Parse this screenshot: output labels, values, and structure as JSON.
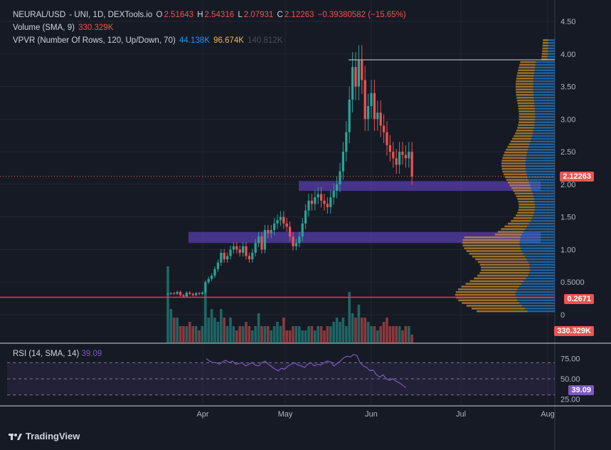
{
  "header": {
    "symbol": "NEURAL/USD",
    "sep1": " - UNI, 1D, DEXTools.io",
    "o_label": "O",
    "o": "2.51643",
    "h_label": "H",
    "h": "2.54316",
    "l_label": "L",
    "l": "2.07931",
    "c_label": "C",
    "c": "2.12263",
    "change": "−0.39380582 (−15.65%)",
    "volume_label": "Volume (SMA, 9)",
    "volume_value": "330.329K",
    "vpvr_label": "VPVR (Number Of Rows, 120, Up/Down, 70)",
    "vpvr_up": "44.138K",
    "vpvr_down": "96.674K",
    "vpvr_total": "140.812K"
  },
  "rsi": {
    "label": "RSI (14, SMA, 14)",
    "value": "39.09",
    "axis": [
      "75.00",
      "50.00",
      "25.00"
    ]
  },
  "price_axis": [
    "4.50",
    "4.00",
    "3.50",
    "3.00",
    "2.50",
    "2.00",
    "1.50",
    "1.00",
    "0.5000",
    "0"
  ],
  "time_axis": [
    "Apr",
    "May",
    "Jun",
    "Jul",
    "Aug"
  ],
  "tags": {
    "last_price": "2.12263",
    "level_line": "0.2671",
    "volume": "330.329K"
  },
  "brand": "TradingView",
  "colors": {
    "up": "#26a69a",
    "down": "#ef5350",
    "bg": "#161a25",
    "grid": "#232633",
    "zone": "#5b3fb5",
    "rsi": "#7e57c2",
    "vp_up": "#2879c0",
    "vp_down": "#e0a030"
  },
  "chart_data": {
    "type": "candlestick",
    "title": "NEURAL/USD - UNI, 1D, DEXTools.io",
    "ylim": [
      0,
      4.6
    ],
    "x_range": [
      "Mar 25",
      "Aug 2"
    ],
    "price_start": 0.32,
    "candles_close_path": [
      0.32,
      0.33,
      0.32,
      0.35,
      0.3,
      0.28,
      0.34,
      0.32,
      0.3,
      0.33,
      0.32,
      0.34,
      0.5,
      0.55,
      0.6,
      0.7,
      0.8,
      0.95,
      0.85,
      0.9,
      1.0,
      1.05,
      1.0,
      0.95,
      1.05,
      0.9,
      0.85,
      0.95,
      1.1,
      1.2,
      1.0,
      1.3,
      1.25,
      1.3,
      1.4,
      1.45,
      1.5,
      1.4,
      1.35,
      1.2,
      1.05,
      1.1,
      1.2,
      1.4,
      1.6,
      1.75,
      1.7,
      1.8,
      1.85,
      1.75,
      1.7,
      1.65,
      1.8,
      1.9,
      2.0,
      2.2,
      2.5,
      2.8,
      3.3,
      3.8,
      3.5,
      3.9,
      3.6,
      3.0,
      3.2,
      3.4,
      3.0,
      3.1,
      2.9,
      2.8,
      2.6,
      2.5,
      2.4,
      2.3,
      2.5,
      2.45,
      2.4,
      2.5,
      2.12
    ],
    "volume_bars": [
      0.9,
      0.4,
      0.3,
      0.3,
      0.2,
      0.2,
      0.2,
      0.25,
      0.2,
      0.2,
      0.15,
      0.2,
      0.6,
      0.3,
      0.4,
      0.3,
      0.25,
      0.4,
      0.3,
      0.2,
      0.3,
      0.2,
      0.15,
      0.2,
      0.2,
      0.25,
      0.2,
      0.15,
      0.2,
      0.35,
      0.2,
      0.2,
      0.2,
      0.15,
      0.2,
      0.25,
      0.2,
      0.3,
      0.15,
      0.15,
      0.2,
      0.2,
      0.2,
      0.15,
      0.15,
      0.2,
      0.2,
      0.15,
      0.2,
      0.2,
      0.15,
      0.2,
      0.2,
      0.25,
      0.3,
      0.25,
      0.3,
      0.2,
      0.6,
      0.35,
      0.3,
      0.45,
      0.3,
      0.3,
      0.25,
      0.2,
      0.2,
      0.15,
      0.2,
      0.25,
      0.3,
      0.2,
      0.2,
      0.2,
      0.2,
      0.15,
      0.2,
      0.2,
      0.1
    ],
    "rsi_values": [
      75,
      72,
      70,
      70,
      68,
      71,
      73,
      70,
      72,
      68,
      69,
      70,
      66,
      68,
      70,
      67,
      66,
      70,
      72,
      68,
      65,
      62,
      60,
      63,
      62,
      66,
      68,
      70,
      67,
      66,
      64,
      68,
      70,
      66,
      68,
      67,
      70,
      72,
      71,
      66,
      69,
      72,
      76,
      78,
      77,
      80,
      79,
      70,
      66,
      64,
      60,
      61,
      55,
      52,
      55,
      50,
      48,
      50,
      47,
      45,
      42,
      39
    ],
    "rsi_ylim": [
      20,
      80
    ],
    "horizontal_lines": [
      0.2671,
      2.12263
    ],
    "zones": [
      {
        "from": 1.9,
        "to": 2.05
      },
      {
        "from": 1.1,
        "to": 1.27
      }
    ]
  }
}
